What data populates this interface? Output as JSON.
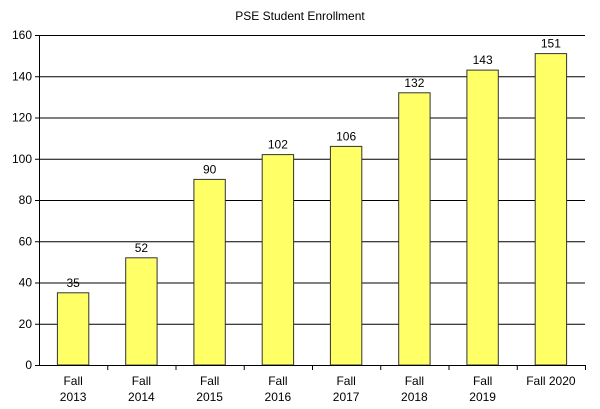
{
  "chart_data": {
    "type": "bar",
    "title": "PSE Student Enrollment",
    "categories": [
      [
        "Fall",
        "2013"
      ],
      [
        "Fall",
        "2014"
      ],
      [
        "Fall",
        "2015"
      ],
      [
        "Fall",
        "2016"
      ],
      [
        "Fall",
        "2017"
      ],
      [
        "Fall",
        "2018"
      ],
      [
        "Fall",
        "2019"
      ],
      [
        "Fall 2020"
      ]
    ],
    "values": [
      35,
      52,
      90,
      102,
      106,
      132,
      143,
      151
    ],
    "ylim": [
      0,
      160
    ],
    "yticks": [
      0,
      20,
      40,
      60,
      80,
      100,
      120,
      140,
      160
    ],
    "grid": true,
    "data_labels": true,
    "legend": "none",
    "colors": {
      "bar_fill": "#ffff66",
      "bar_stroke": "#333333",
      "grid": "#000000",
      "axis": "#000000"
    }
  }
}
